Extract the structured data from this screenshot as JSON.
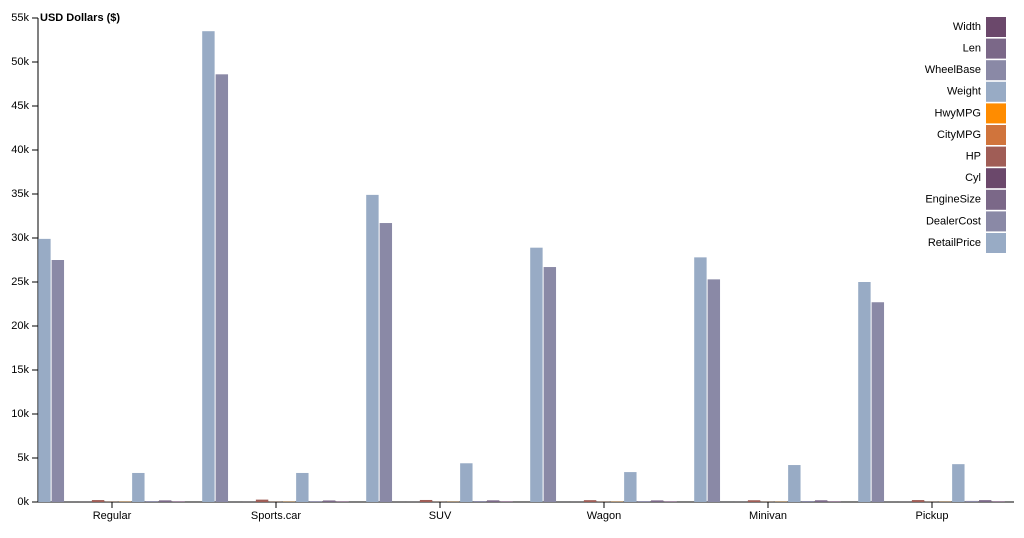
{
  "chart_data": {
    "type": "bar",
    "y_label": "USD Dollars ($)",
    "categories": [
      "Regular",
      "Sports.car",
      "SUV",
      "Wagon",
      "Minivan",
      "Pickup"
    ],
    "series": [
      {
        "name": "RetailPrice",
        "color": "#98abc5",
        "values": [
          29900,
          53500,
          34900,
          28900,
          27800,
          25000
        ]
      },
      {
        "name": "DealerCost",
        "color": "#8a89a6",
        "values": [
          27500,
          48600,
          31700,
          26700,
          25300,
          22700
        ]
      },
      {
        "name": "EngineSize",
        "color": "#7b6888",
        "values": [
          3,
          3,
          4,
          3,
          3,
          4
        ]
      },
      {
        "name": "Cyl",
        "color": "#6b486b",
        "values": [
          6,
          7,
          7,
          6,
          6,
          7
        ]
      },
      {
        "name": "HP",
        "color": "#a05d56",
        "values": [
          220,
          270,
          230,
          210,
          200,
          220
        ]
      },
      {
        "name": "CityMPG",
        "color": "#d0743c",
        "values": [
          20,
          18,
          16,
          20,
          18,
          16
        ]
      },
      {
        "name": "HwyMPG",
        "color": "#ff8c00",
        "values": [
          27,
          25,
          21,
          27,
          24,
          20
        ]
      },
      {
        "name": "Weight",
        "color": "#98abc5",
        "values": [
          3300,
          3300,
          4400,
          3400,
          4200,
          4300
        ]
      },
      {
        "name": "WheelBase",
        "color": "#8a89a6",
        "values": [
          107,
          100,
          110,
          106,
          115,
          125
        ]
      },
      {
        "name": "Len",
        "color": "#7b6888",
        "values": [
          185,
          175,
          188,
          182,
          195,
          210
        ]
      },
      {
        "name": "Width",
        "color": "#6b486b",
        "values": [
          71,
          72,
          74,
          71,
          75,
          75
        ]
      }
    ],
    "ylim": [
      0,
      55000
    ],
    "yticks": [
      {
        "value": 0,
        "label": "0k"
      },
      {
        "value": 5000,
        "label": "5k"
      },
      {
        "value": 10000,
        "label": "10k"
      },
      {
        "value": 15000,
        "label": "15k"
      },
      {
        "value": 20000,
        "label": "20k"
      },
      {
        "value": 25000,
        "label": "25k"
      },
      {
        "value": 30000,
        "label": "30k"
      },
      {
        "value": 35000,
        "label": "35k"
      },
      {
        "value": 40000,
        "label": "40k"
      },
      {
        "value": 45000,
        "label": "45k"
      },
      {
        "value": 50000,
        "label": "50k"
      },
      {
        "value": 55000,
        "label": "55k"
      }
    ],
    "legend": "top-right"
  }
}
